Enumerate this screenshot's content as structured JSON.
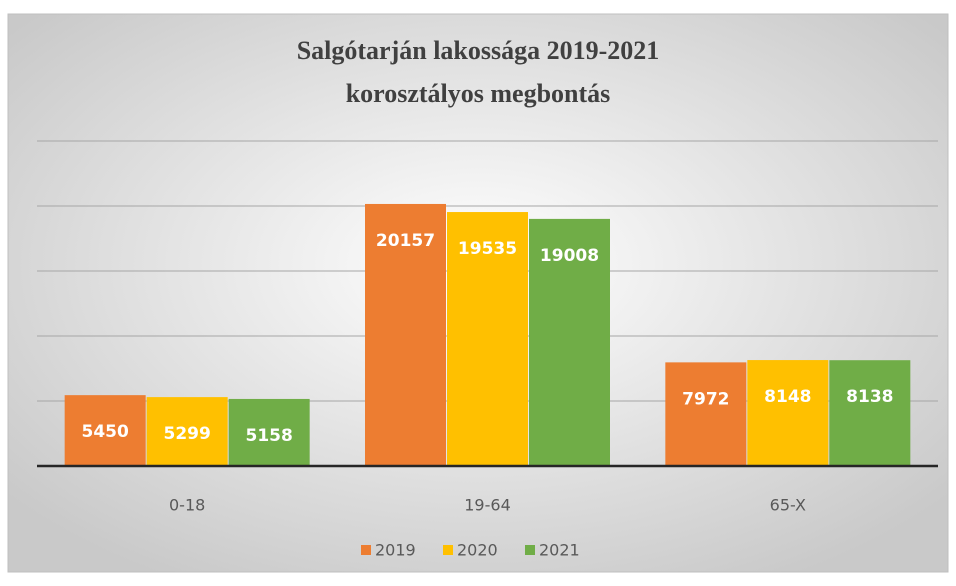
{
  "chart_data": {
    "type": "bar",
    "title": "Salgótarján lakossága 2019-2021",
    "subtitle": "korosztályos megbontás",
    "categories": [
      "0-18",
      "19-64",
      "65-X"
    ],
    "series": [
      {
        "name": "2019",
        "color": "#ed7d31",
        "values": [
          5450,
          20157,
          7972
        ]
      },
      {
        "name": "2020",
        "color": "#ffc000",
        "values": [
          5299,
          19535,
          8148
        ]
      },
      {
        "name": "2021",
        "color": "#70ad47",
        "values": [
          5158,
          19008,
          8138
        ]
      }
    ],
    "ylim": [
      0,
      25000
    ],
    "yticks": [
      0,
      5000,
      10000,
      15000,
      20000,
      25000
    ],
    "grid": true,
    "legend": "bottom"
  }
}
